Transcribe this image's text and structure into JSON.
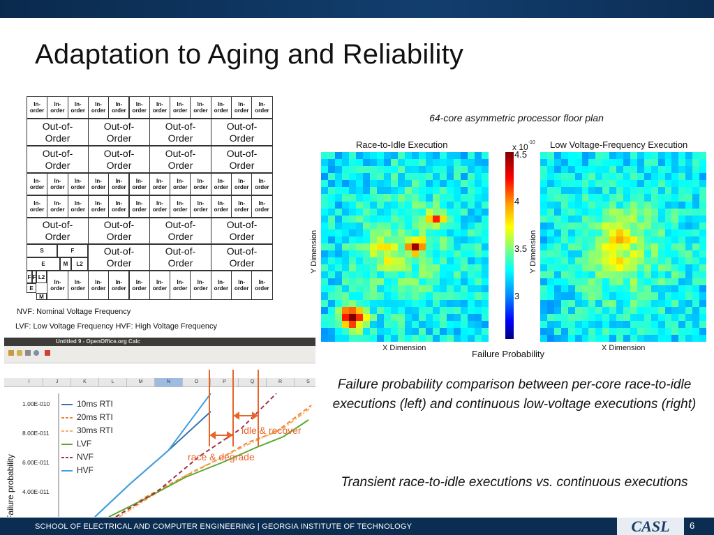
{
  "slide": {
    "title": "Adaptation to Aging and Reliability",
    "footer": "SCHOOL OF ELECTRICAL AND COMPUTER ENGINEERING | GEORGIA INSTITUTE OF TECHNOLOGY",
    "logo_text": "CASL",
    "page_number": "6"
  },
  "floorplan": {
    "in_order_label": "In-\norder",
    "ooo_label": "Out-of-\nOrder",
    "misc": {
      "s": "S",
      "f": "F",
      "e": "E",
      "m": "M",
      "l2": "L2"
    }
  },
  "legend": {
    "nvf": "NVF: Nominal Voltage Frequency",
    "lvf_hvf": "LVF: Low Voltage Frequency HVF: High Voltage Frequency"
  },
  "heatmaps": {
    "caption": "64-core asymmetric processor floor plan",
    "left_title": "Race-to-Idle Execution",
    "right_title": "Low Voltage-Frequency Execution",
    "x_label": "X Dimension",
    "y_label": "Y Dimension",
    "colorbar_label": "Failure Probability",
    "colorbar_exponent": "x 10",
    "colorbar_exponent_power": "-10",
    "colorbar_ticks": [
      "4.5",
      "4",
      "3.5",
      "3"
    ]
  },
  "spreadsheet": {
    "window_title": "Untitled 9 - OpenOffice.org Calc",
    "columns": [
      "I",
      "J",
      "K",
      "L",
      "M",
      "N",
      "O",
      "P",
      "Q",
      "R",
      "S"
    ],
    "selected_column": "N"
  },
  "chart_data": {
    "type": "line",
    "title": "",
    "xlabel": "",
    "ylabel": "Failure probability",
    "y_ticks": [
      "1.00E-010",
      "8.00E-011",
      "6.00E-011",
      "4.00E-011"
    ],
    "series": [
      {
        "name": "10ms RTI",
        "color": "#3a6fb0",
        "style": "solid"
      },
      {
        "name": "20ms RTI",
        "color": "#f08030",
        "style": "dashed"
      },
      {
        "name": "30ms RTI",
        "color": "#f5b060",
        "style": "dashdot"
      },
      {
        "name": "LVF",
        "color": "#5aa832",
        "style": "solid"
      },
      {
        "name": "NVF",
        "color": "#a0304a",
        "style": "dashed"
      },
      {
        "name": "HVF",
        "color": "#40a0e0",
        "style": "solid"
      }
    ]
  },
  "annotations": {
    "idle_recover": "idle & recover",
    "race_degrade": "race & degrade"
  },
  "descriptions": {
    "first": "Failure probability comparison between per-core race-to-idle executions (left) and continuous low-voltage executions (right)",
    "second": "Transient race-to-idle executions vs. continuous executions"
  }
}
